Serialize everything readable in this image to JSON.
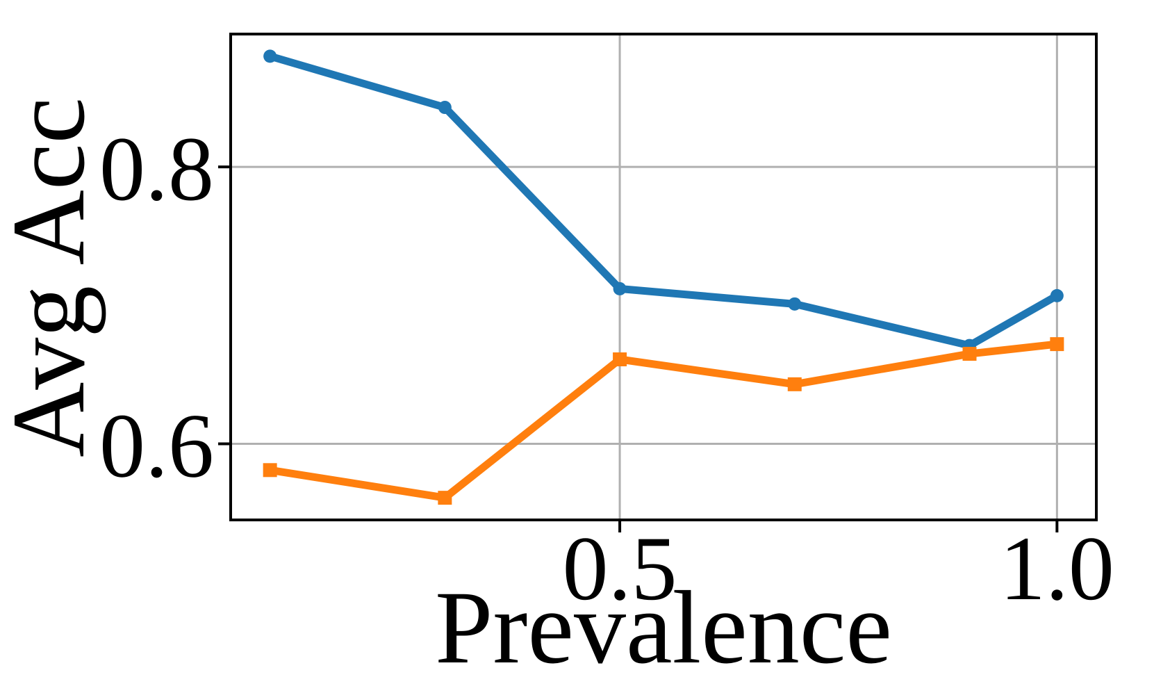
{
  "figure": {
    "background": "#ffffff"
  },
  "chart_data": {
    "type": "line",
    "title": "",
    "xlabel": "Prevalence",
    "ylabel": "Avg Acc",
    "x": [
      0.1,
      0.3,
      0.5,
      0.7,
      0.9,
      1.0
    ],
    "series": [
      {
        "name": "blue-circle-series",
        "marker": "circle",
        "color": "#1f77b4",
        "values": [
          0.88,
          0.843,
          0.712,
          0.701,
          0.671,
          0.707
        ]
      },
      {
        "name": "orange-square-series",
        "marker": "square",
        "color": "#ff7f0e",
        "values": [
          0.581,
          0.561,
          0.661,
          0.643,
          0.665,
          0.672
        ]
      }
    ],
    "xlim": [
      0.055,
      1.045
    ],
    "ylim": [
      0.545,
      0.896
    ],
    "xticks": [
      {
        "value": 0.5,
        "label": "0.5"
      },
      {
        "value": 1.0,
        "label": "1.0"
      }
    ],
    "yticks": [
      {
        "value": 0.6,
        "label": "0.6"
      },
      {
        "value": 0.8,
        "label": "0.8"
      }
    ],
    "grid": true,
    "legend": "none",
    "grid_color": "#b0b0b0",
    "spine_color": "#000000",
    "tick_color": "#000000",
    "text_color": "#000000"
  }
}
